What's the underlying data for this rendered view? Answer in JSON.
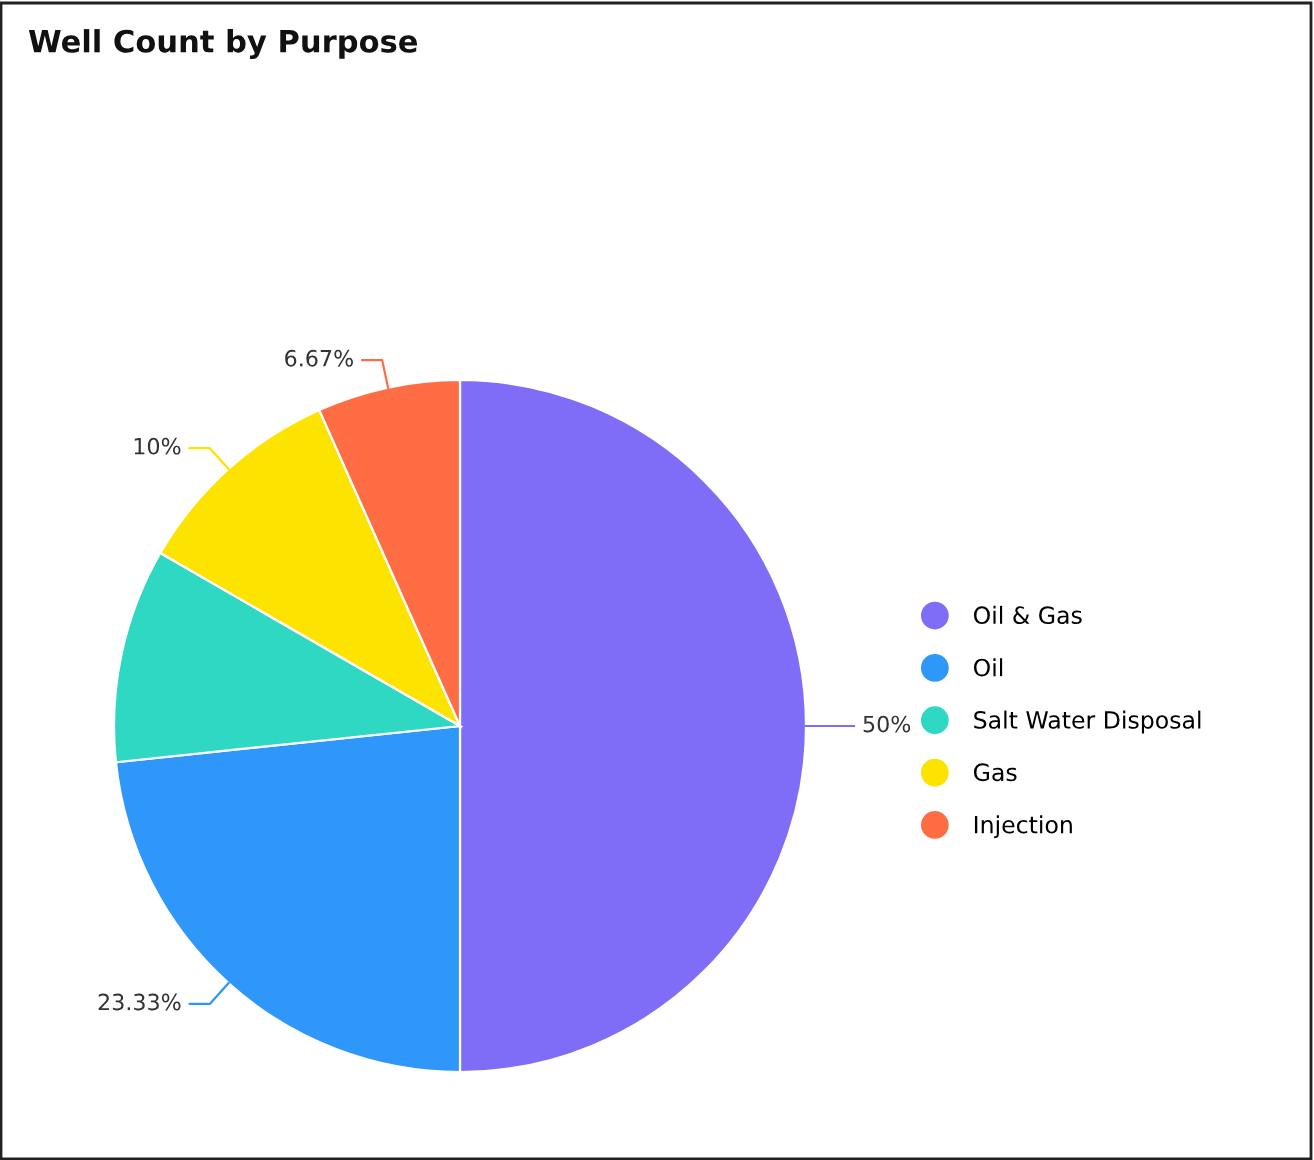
{
  "chart_data": {
    "type": "pie",
    "title": "Well Count by Purpose",
    "categories": [
      "Oil & Gas",
      "Oil",
      "Salt Water Disposal",
      "Gas",
      "Injection"
    ],
    "values": [
      50,
      23.33,
      10,
      10,
      6.67
    ],
    "value_labels": [
      "50%",
      "23.33%",
      null,
      "10%",
      "6.67%"
    ],
    "colors": [
      "#7f6cf7",
      "#2f97fa",
      "#2ed8c3",
      "#fde300",
      "#ff6d45"
    ],
    "legend": "right"
  }
}
